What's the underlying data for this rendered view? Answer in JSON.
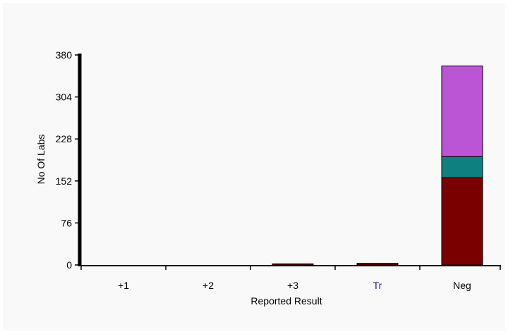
{
  "chart_data": {
    "type": "bar",
    "stacked": true,
    "title": "",
    "xlabel": "Reported Result",
    "ylabel": "No Of Labs",
    "ylim": [
      0,
      380
    ],
    "yticks": [
      0,
      76,
      152,
      228,
      304,
      380
    ],
    "categories": [
      "+1",
      "+2",
      "+3",
      "Tr",
      "Neg"
    ],
    "category_colors": [
      "#000000",
      "#000000",
      "#000000",
      "#1f1f8f",
      "#000000"
    ],
    "series": [
      {
        "values": [
          0,
          0,
          2,
          3,
          158
        ],
        "color": "#7a0000"
      },
      {
        "values": [
          0,
          0,
          0,
          0,
          38
        ],
        "color": "#0f8080"
      },
      {
        "values": [
          0,
          0,
          0,
          0,
          164
        ],
        "color": "#bb55d6"
      }
    ],
    "grid": false,
    "legend": "none"
  }
}
